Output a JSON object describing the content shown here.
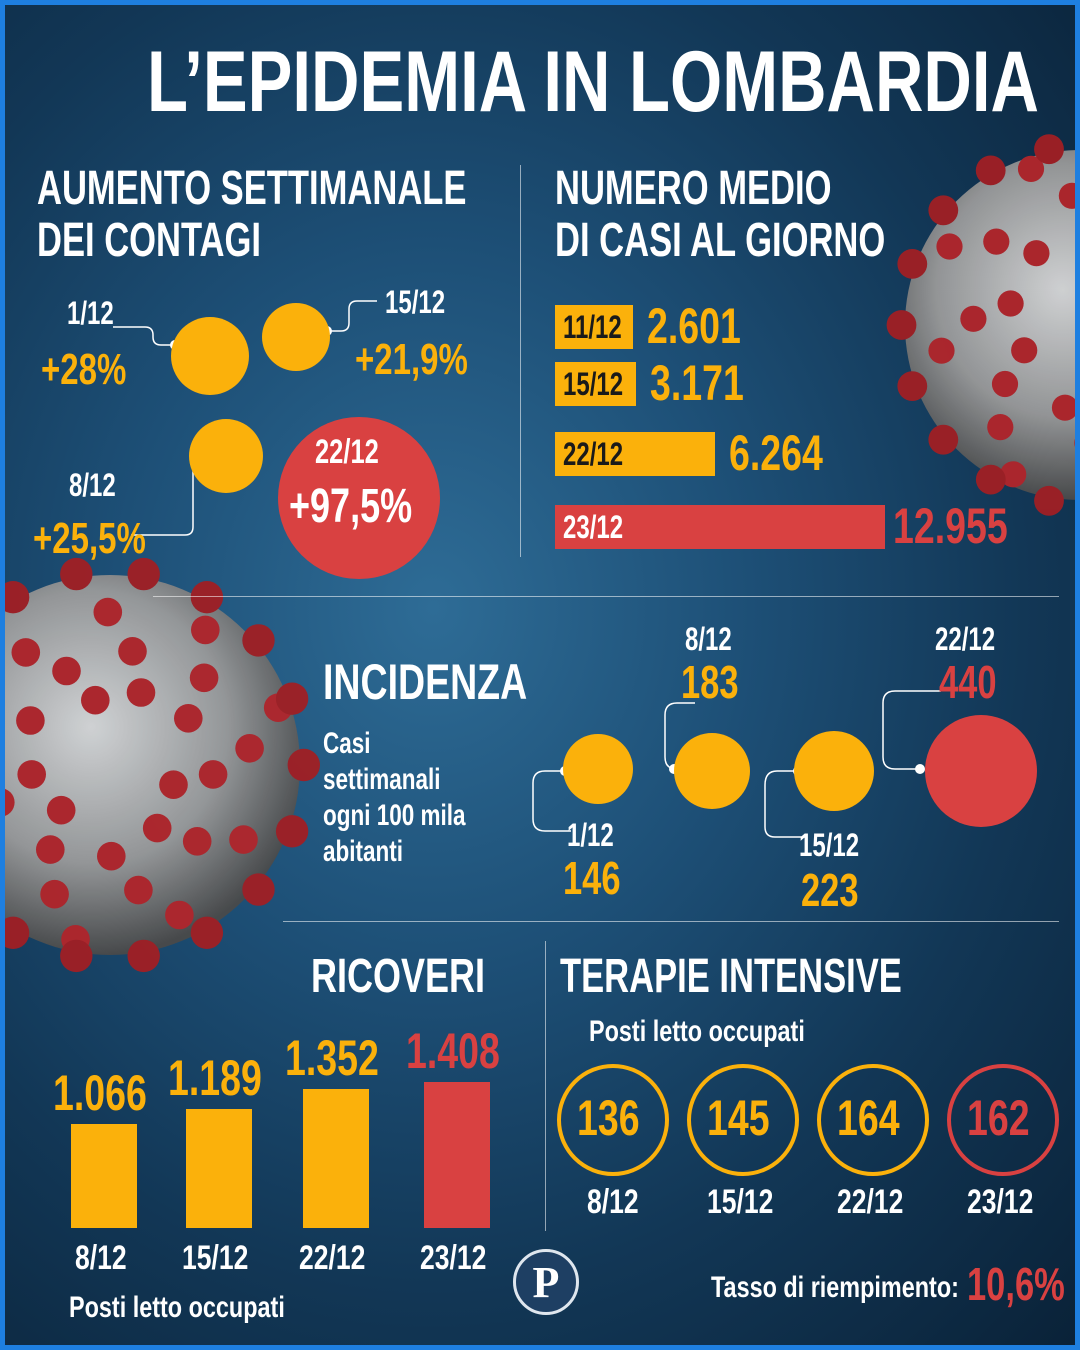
{
  "title": "L’EPIDEMIA IN LOMBARDIA",
  "colors": {
    "yellow": "#fbb10b",
    "red": "#d94141",
    "white": "#ffffff",
    "bg": "#1d4f76"
  },
  "aumento": {
    "title1": "AUMENTO SETTIMANALE",
    "title2": "DEI CONTAGI",
    "items": [
      {
        "date": "1/12",
        "value": "+28%"
      },
      {
        "date": "15/12",
        "value": "+21,9%"
      },
      {
        "date": "8/12",
        "value": "+25,5%"
      },
      {
        "date": "22/12",
        "value": "+97,5%"
      }
    ]
  },
  "numero": {
    "title1": "NUMERO MEDIO",
    "title2": "DI CASI AL GIORNO",
    "bars": [
      {
        "date": "11/12",
        "value": "2.601"
      },
      {
        "date": "15/12",
        "value": "3.171"
      },
      {
        "date": "22/12",
        "value": "6.264"
      },
      {
        "date": "23/12",
        "value": "12.955"
      }
    ]
  },
  "incidenza": {
    "title": "INCIDENZA",
    "desc1": "Casi",
    "desc2": "settimanali",
    "desc3": "ogni 100 mila",
    "desc4": "abitanti",
    "items": [
      {
        "date": "1/12",
        "value": "146"
      },
      {
        "date": "8/12",
        "value": "183"
      },
      {
        "date": "15/12",
        "value": "223"
      },
      {
        "date": "22/12",
        "value": "440"
      }
    ]
  },
  "ricoveri": {
    "title": "RICOVERI",
    "footer": "Posti letto occupati",
    "bars": [
      {
        "date": "8/12",
        "value": "1.066"
      },
      {
        "date": "15/12",
        "value": "1.189"
      },
      {
        "date": "22/12",
        "value": "1.352"
      },
      {
        "date": "23/12",
        "value": "1.408"
      }
    ]
  },
  "terapie": {
    "title": "TERAPIE INTENSIVE",
    "subtitle": "Posti letto occupati",
    "items": [
      {
        "date": "8/12",
        "value": "136"
      },
      {
        "date": "15/12",
        "value": "145"
      },
      {
        "date": "22/12",
        "value": "164"
      },
      {
        "date": "23/12",
        "value": "162"
      }
    ],
    "tasso_label": "Tasso di riempimento:",
    "tasso_value": "10,6%"
  },
  "logo": {
    "letter": "P"
  },
  "chart_data": [
    {
      "type": "bubble",
      "title": "AUMENTO SETTIMANALE DEI CONTAGI",
      "categories": [
        "1/12",
        "8/12",
        "15/12",
        "22/12"
      ],
      "values": [
        28,
        25.5,
        21.9,
        97.5
      ],
      "unit": "%"
    },
    {
      "type": "bar",
      "title": "NUMERO MEDIO DI CASI AL GIORNO",
      "categories": [
        "11/12",
        "15/12",
        "22/12",
        "23/12"
      ],
      "values": [
        2601,
        3171,
        6264,
        12955
      ],
      "orientation": "horizontal"
    },
    {
      "type": "bubble",
      "title": "INCIDENZA",
      "categories": [
        "1/12",
        "8/12",
        "15/12",
        "22/12"
      ],
      "values": [
        146,
        183,
        223,
        440
      ]
    },
    {
      "type": "bar",
      "title": "RICOVERI",
      "categories": [
        "8/12",
        "15/12",
        "22/12",
        "23/12"
      ],
      "values": [
        1066,
        1189,
        1352,
        1408
      ]
    },
    {
      "type": "bubble",
      "title": "TERAPIE INTENSIVE",
      "categories": [
        "8/12",
        "15/12",
        "22/12",
        "23/12"
      ],
      "values": [
        136,
        145,
        164,
        162
      ]
    }
  ]
}
